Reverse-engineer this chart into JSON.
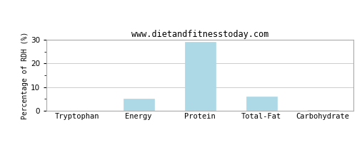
{
  "title_line2": "www.dietandfitnesstoday.com",
  "categories": [
    "Tryptophan",
    "Energy",
    "Protein",
    "Total-Fat",
    "Carbohydrate"
  ],
  "values": [
    0.0,
    5.2,
    29.1,
    6.1,
    0.3
  ],
  "bar_color": "#add8e6",
  "bar_edge_color": "#add8e6",
  "ylabel": "Percentage of RDH (%)",
  "ylim": [
    0,
    30
  ],
  "yticks": [
    0,
    10,
    20,
    30
  ],
  "background_color": "#ffffff",
  "grid_color": "#cccccc",
  "border_color": "#aaaaaa",
  "title_fontsize": 8.5,
  "subtitle_fontsize": 8.5,
  "ylabel_fontsize": 7,
  "tick_fontsize": 7.5
}
